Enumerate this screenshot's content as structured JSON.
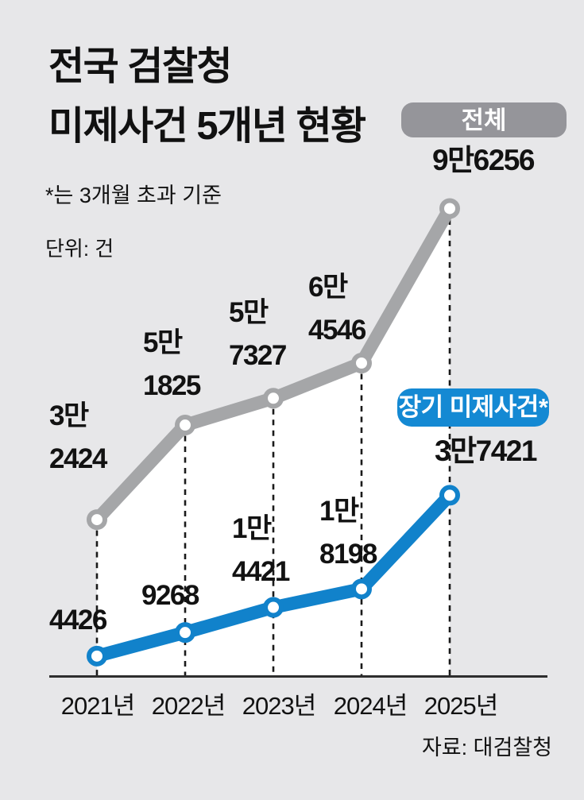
{
  "title": {
    "line1": "전국 검찰청",
    "line2": "미제사건 5개년 현황"
  },
  "notes": {
    "asterisk": "*는 3개월 초과 기준",
    "unit": "단위: 건"
  },
  "source": "자료: 대검찰청",
  "legend": {
    "total": "전체",
    "long_term": "장기 미제사건*"
  },
  "colors": {
    "background": "#e7e7e9",
    "total_line": "#a5a6a8",
    "total_badge": "#95959a",
    "long_term_line": "#1182cb",
    "long_term_badge": "#1489d3",
    "area_fill": "#ffffff",
    "axis": "#2e2e2e",
    "dash": "#1a1a1a",
    "marker_fill": "#ffffff",
    "text": "#121212"
  },
  "chart_data": {
    "type": "line",
    "title": "전국 검찰청 미제사건 5개년 현황",
    "unit": "건",
    "categories": [
      "2021년",
      "2022년",
      "2023년",
      "2024년",
      "2025년"
    ],
    "series": [
      {
        "name": "전체",
        "key": "total",
        "values": [
          32424,
          51825,
          57327,
          64546,
          96256
        ],
        "labels": [
          [
            "3만",
            "2424"
          ],
          [
            "5만",
            "1825"
          ],
          [
            "5만",
            "7327"
          ],
          [
            "6만",
            "4546"
          ],
          [
            "9만6256"
          ]
        ]
      },
      {
        "name": "장기 미제사건*",
        "key": "long_term",
        "values": [
          4426,
          9268,
          14421,
          18198,
          37421
        ],
        "labels": [
          [
            "4426"
          ],
          [
            "9268"
          ],
          [
            "1만",
            "4421"
          ],
          [
            "1만",
            "8198"
          ],
          [
            "3만7421"
          ]
        ]
      }
    ],
    "ylim": [
      0,
      100000
    ],
    "grid": "vertical-dashed-at-data-points",
    "area_fill_under_total_series": true,
    "legend_position": "badges-near-last-points",
    "footnote": "*는 3개월 초과 기준"
  }
}
